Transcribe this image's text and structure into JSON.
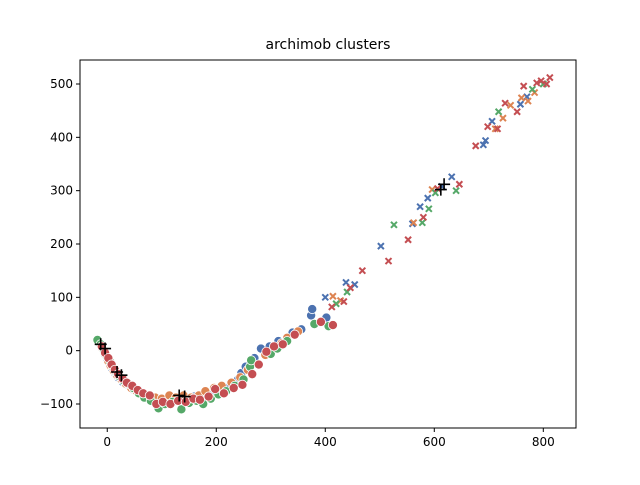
{
  "chart_data": {
    "type": "scatter",
    "title": "archimob clusters",
    "xlabel": "",
    "ylabel": "",
    "xlim": [
      -50,
      860
    ],
    "ylim": [
      -145,
      545
    ],
    "xticks": [
      0,
      200,
      400,
      600,
      800
    ],
    "yticks": [
      -100,
      0,
      100,
      200,
      300,
      400,
      500
    ],
    "grid": false,
    "legend": "none",
    "colors": {
      "blue": "#4c72b0",
      "orange": "#dd8452",
      "green": "#55a868",
      "red": "#c44e52",
      "centroid": "#000000"
    },
    "series": [
      {
        "marker": "circle",
        "color": "blue",
        "points": [
          [
            -16,
            18
          ],
          [
            -12,
            10
          ],
          [
            -8,
            2
          ],
          [
            -4,
            -8
          ],
          [
            0,
            -16
          ],
          [
            4,
            -24
          ],
          [
            8,
            -32
          ],
          [
            14,
            -42
          ],
          [
            20,
            -50
          ],
          [
            28,
            -58
          ],
          [
            36,
            -64
          ],
          [
            46,
            -72
          ],
          [
            56,
            -78
          ],
          [
            66,
            -84
          ],
          [
            78,
            -88
          ],
          [
            90,
            -92
          ],
          [
            104,
            -94
          ],
          [
            118,
            -92
          ],
          [
            132,
            -90
          ],
          [
            146,
            -92
          ],
          [
            160,
            -86
          ],
          [
            176,
            -84
          ],
          [
            192,
            -80
          ],
          [
            208,
            -74
          ],
          [
            226,
            -66
          ],
          [
            240,
            -54
          ],
          [
            246,
            -42
          ],
          [
            254,
            -30
          ],
          [
            270,
            -14
          ],
          [
            282,
            4
          ],
          [
            298,
            8
          ],
          [
            314,
            18
          ],
          [
            340,
            34
          ],
          [
            356,
            40
          ],
          [
            374,
            66
          ],
          [
            376,
            78
          ],
          [
            402,
            62
          ]
        ]
      },
      {
        "marker": "circle",
        "color": "orange",
        "points": [
          [
            -14,
            14
          ],
          [
            -10,
            6
          ],
          [
            -6,
            -2
          ],
          [
            -2,
            -10
          ],
          [
            2,
            -20
          ],
          [
            6,
            -28
          ],
          [
            12,
            -38
          ],
          [
            18,
            -46
          ],
          [
            26,
            -54
          ],
          [
            34,
            -62
          ],
          [
            44,
            -70
          ],
          [
            54,
            -76
          ],
          [
            64,
            -82
          ],
          [
            76,
            -86
          ],
          [
            88,
            -88
          ],
          [
            100,
            -90
          ],
          [
            114,
            -84
          ],
          [
            126,
            -88
          ],
          [
            140,
            -84
          ],
          [
            154,
            -88
          ],
          [
            168,
            -84
          ],
          [
            180,
            -76
          ],
          [
            196,
            -70
          ],
          [
            210,
            -66
          ],
          [
            228,
            -60
          ],
          [
            244,
            -50
          ],
          [
            258,
            -36
          ],
          [
            290,
            -8
          ],
          [
            320,
            14
          ],
          [
            330,
            24
          ],
          [
            350,
            36
          ]
        ]
      },
      {
        "marker": "circle",
        "color": "green",
        "points": [
          [
            -18,
            20
          ],
          [
            -12,
            12
          ],
          [
            -6,
            0
          ],
          [
            0,
            -12
          ],
          [
            6,
            -22
          ],
          [
            10,
            -30
          ],
          [
            16,
            -40
          ],
          [
            22,
            -48
          ],
          [
            30,
            -56
          ],
          [
            38,
            -62
          ],
          [
            48,
            -70
          ],
          [
            58,
            -80
          ],
          [
            68,
            -88
          ],
          [
            80,
            -94
          ],
          [
            94,
            -108
          ],
          [
            106,
            -100
          ],
          [
            120,
            -96
          ],
          [
            136,
            -110
          ],
          [
            150,
            -98
          ],
          [
            164,
            -94
          ],
          [
            176,
            -100
          ],
          [
            190,
            -90
          ],
          [
            204,
            -82
          ],
          [
            218,
            -76
          ],
          [
            234,
            -66
          ],
          [
            250,
            -54
          ],
          [
            262,
            -30
          ],
          [
            264,
            -18
          ],
          [
            300,
            -6
          ],
          [
            312,
            4
          ],
          [
            330,
            18
          ],
          [
            380,
            50
          ],
          [
            406,
            46
          ]
        ]
      },
      {
        "marker": "circle",
        "color": "red",
        "points": [
          [
            -10,
            8
          ],
          [
            -4,
            -4
          ],
          [
            2,
            -14
          ],
          [
            8,
            -26
          ],
          [
            14,
            -36
          ],
          [
            20,
            -44
          ],
          [
            28,
            -52
          ],
          [
            36,
            -60
          ],
          [
            46,
            -66
          ],
          [
            56,
            -74
          ],
          [
            66,
            -80
          ],
          [
            78,
            -84
          ],
          [
            90,
            -100
          ],
          [
            102,
            -96
          ],
          [
            116,
            -100
          ],
          [
            130,
            -94
          ],
          [
            144,
            -96
          ],
          [
            158,
            -90
          ],
          [
            170,
            -92
          ],
          [
            186,
            -86
          ],
          [
            198,
            -72
          ],
          [
            214,
            -80
          ],
          [
            232,
            -70
          ],
          [
            248,
            -64
          ],
          [
            266,
            -44
          ],
          [
            278,
            -26
          ],
          [
            292,
            -2
          ],
          [
            306,
            8
          ],
          [
            322,
            12
          ],
          [
            344,
            30
          ],
          [
            392,
            54
          ],
          [
            414,
            48
          ]
        ]
      },
      {
        "marker": "x",
        "color": "blue",
        "points": [
          [
            400,
            100
          ],
          [
            438,
            128
          ],
          [
            454,
            124
          ],
          [
            502,
            196
          ],
          [
            560,
            238
          ],
          [
            574,
            270
          ],
          [
            588,
            286
          ],
          [
            614,
            308
          ],
          [
            632,
            326
          ],
          [
            690,
            386
          ],
          [
            694,
            394
          ],
          [
            706,
            430
          ],
          [
            758,
            462
          ],
          [
            770,
            476
          ]
        ]
      },
      {
        "marker": "x",
        "color": "orange",
        "points": [
          [
            414,
            102
          ],
          [
            428,
            94
          ],
          [
            562,
            240
          ],
          [
            596,
            302
          ],
          [
            712,
            416
          ],
          [
            726,
            436
          ],
          [
            740,
            460
          ],
          [
            760,
            474
          ],
          [
            772,
            468
          ],
          [
            784,
            484
          ]
        ]
      },
      {
        "marker": "x",
        "color": "green",
        "points": [
          [
            420,
            88
          ],
          [
            440,
            110
          ],
          [
            526,
            236
          ],
          [
            578,
            240
          ],
          [
            590,
            266
          ],
          [
            602,
            296
          ],
          [
            640,
            300
          ],
          [
            718,
            448
          ],
          [
            780,
            490
          ],
          [
            800,
            500
          ]
        ]
      },
      {
        "marker": "x",
        "color": "red",
        "points": [
          [
            412,
            82
          ],
          [
            434,
            92
          ],
          [
            446,
            118
          ],
          [
            468,
            150
          ],
          [
            516,
            168
          ],
          [
            552,
            208
          ],
          [
            580,
            250
          ],
          [
            606,
            304
          ],
          [
            646,
            312
          ],
          [
            676,
            384
          ],
          [
            698,
            420
          ],
          [
            716,
            416
          ],
          [
            730,
            464
          ],
          [
            752,
            448
          ],
          [
            764,
            496
          ],
          [
            788,
            502
          ],
          [
            796,
            506
          ],
          [
            806,
            500
          ],
          [
            812,
            512
          ]
        ]
      },
      {
        "marker": "plus",
        "color": "centroid",
        "points": [
          [
            -12,
            12
          ],
          [
            -4,
            4
          ],
          [
            18,
            -40
          ],
          [
            26,
            -46
          ],
          [
            132,
            -84
          ],
          [
            142,
            -86
          ],
          [
            612,
            302
          ],
          [
            618,
            312
          ]
        ]
      }
    ]
  }
}
